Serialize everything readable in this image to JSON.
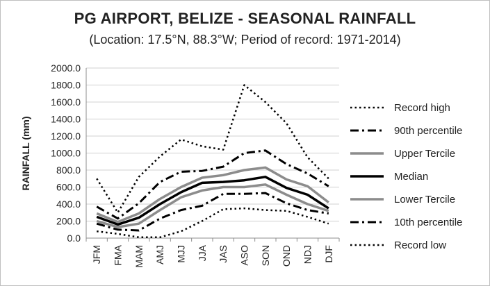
{
  "chart_data": {
    "type": "line",
    "title": "PG AIRPORT, BELIZE - SEASONAL RAINFALL",
    "subtitle": "(Location: 17.5°N, 88.3°W; Period of record: 1971-2014)",
    "xlabel": "",
    "ylabel": "RAINFALL (mm)",
    "ylim": [
      0,
      2000
    ],
    "yticks": [
      "0.0",
      "200.0",
      "400.0",
      "600.0",
      "800.0",
      "1000.0",
      "1200.0",
      "1400.0",
      "1600.0",
      "1800.0",
      "2000.0"
    ],
    "categories": [
      "JFM",
      "FMA",
      "MAM",
      "AMJ",
      "MJJ",
      "JJA",
      "JAS",
      "ASO",
      "SON",
      "OND",
      "NDJ",
      "DJF"
    ],
    "grid": true,
    "legend_position": "right",
    "series": [
      {
        "name": "Record high",
        "style": "dotted",
        "color": "#000000",
        "width": 2.5,
        "values": [
          700,
          300,
          720,
          960,
          1160,
          1080,
          1040,
          1800,
          1600,
          1350,
          950,
          700
        ]
      },
      {
        "name": "90th percentile",
        "style": "dashdot",
        "color": "#000000",
        "width": 3,
        "values": [
          370,
          230,
          410,
          660,
          780,
          790,
          840,
          1000,
          1030,
          870,
          760,
          610
        ]
      },
      {
        "name": "Upper Tercile",
        "style": "solid",
        "color": "#8c8c8c",
        "width": 3.5,
        "values": [
          290,
          190,
          290,
          460,
          600,
          710,
          740,
          800,
          830,
          690,
          610,
          420
        ]
      },
      {
        "name": "Median",
        "style": "solid",
        "color": "#000000",
        "width": 3.5,
        "values": [
          250,
          160,
          240,
          400,
          540,
          650,
          660,
          680,
          720,
          590,
          510,
          350
        ]
      },
      {
        "name": "Lower Tercile",
        "style": "solid",
        "color": "#8c8c8c",
        "width": 3.5,
        "values": [
          200,
          130,
          170,
          330,
          480,
          560,
          600,
          600,
          630,
          510,
          400,
          320
        ]
      },
      {
        "name": "10th percentile",
        "style": "dashdot",
        "color": "#000000",
        "width": 3,
        "values": [
          170,
          100,
          90,
          230,
          330,
          380,
          520,
          520,
          530,
          410,
          330,
          290
        ]
      },
      {
        "name": "Record low",
        "style": "dotted",
        "color": "#000000",
        "width": 2.5,
        "values": [
          80,
          50,
          10,
          10,
          80,
          200,
          340,
          350,
          330,
          320,
          250,
          170
        ]
      }
    ]
  }
}
